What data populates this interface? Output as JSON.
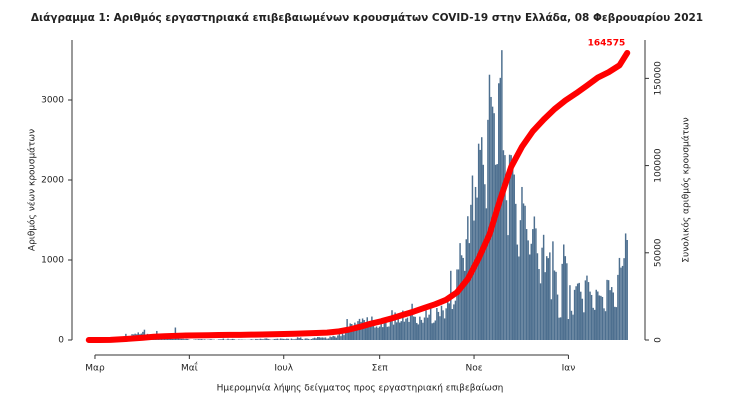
{
  "chart_data": {
    "type": "bar",
    "title": "Διάγραμμα 1: Αριθμός εργαστηριακά επιβεβαιωμένων κρουσμάτων COVID-19 στην Ελλάδα, 08 Φεβρουαρίου 2021",
    "xlabel": "Ημερομηνία λήψης δείγματος προς εργαστηριακή επιβεβαίωση",
    "ylabel": "Αριθμός νέων κρουσμάτων",
    "y2label": "Συνολικός αριθμός κρουσμάτων",
    "ylim": [
      0,
      3750
    ],
    "yticks": [
      0,
      1000,
      2000,
      3000
    ],
    "y2lim": [
      0,
      172000
    ],
    "y2ticks": [
      0,
      50000,
      100000,
      150000
    ],
    "categories": [
      null,
      null,
      null,
      null,
      "Μαρ",
      null,
      null,
      null,
      null,
      null,
      null,
      null,
      null,
      null,
      null,
      null,
      null,
      null,
      null,
      null,
      null,
      null,
      null,
      null,
      null,
      null,
      null,
      null,
      null,
      null,
      null,
      null,
      null,
      null,
      null,
      null,
      null,
      null,
      null,
      null,
      null,
      null,
      null,
      null,
      null,
      null,
      null,
      null,
      null,
      null,
      null,
      null,
      null,
      null,
      null,
      null,
      null,
      null,
      null,
      null,
      null,
      null,
      null,
      null,
      null,
      "Μαΐ",
      null,
      null,
      null,
      null,
      null,
      null,
      null,
      null,
      null,
      null,
      null,
      null,
      null,
      null,
      null,
      null,
      null,
      null,
      null,
      null,
      null,
      null,
      null,
      null,
      null,
      null,
      null,
      null,
      null,
      null,
      null,
      null,
      null,
      null,
      null,
      null,
      null,
      null,
      null,
      null,
      null,
      null,
      null,
      null,
      null,
      null,
      null,
      null,
      null,
      null,
      null,
      null,
      null,
      null,
      null,
      null,
      null,
      null,
      null,
      null,
      "Ιουλ",
      null,
      null,
      null,
      null,
      null,
      null,
      null,
      null,
      null,
      null,
      null,
      null,
      null,
      null,
      null,
      null,
      null,
      null,
      null,
      null,
      null,
      null,
      null,
      null,
      null,
      null,
      null,
      null,
      null,
      null,
      null,
      null,
      null,
      null,
      null,
      null,
      null,
      null,
      null,
      null,
      null,
      null,
      null,
      null,
      null,
      null,
      null,
      null,
      null,
      null,
      null,
      null,
      null,
      null,
      null,
      null,
      null,
      null,
      null,
      null,
      null,
      "Σεπ",
      null,
      null,
      null,
      null,
      null,
      null,
      null,
      null,
      null,
      null,
      null,
      null,
      null,
      null,
      null,
      null,
      null,
      null,
      null,
      null,
      null,
      null,
      null,
      null,
      null,
      null,
      null,
      null,
      null,
      null,
      null,
      null,
      null,
      null,
      null,
      null,
      null,
      null,
      null,
      null,
      null,
      null,
      null,
      null,
      null,
      null,
      null,
      null,
      null,
      null,
      null,
      null,
      null,
      null,
      null,
      null,
      null,
      null,
      null,
      null,
      "Νοε",
      null,
      null,
      null,
      null,
      null,
      null,
      null,
      null,
      null,
      null,
      null,
      null,
      null,
      null,
      null,
      null,
      null,
      null,
      null,
      null,
      null,
      null,
      null,
      null,
      null,
      null,
      null,
      null,
      null,
      null,
      null,
      null,
      null,
      null,
      null,
      null,
      null,
      null,
      null,
      null,
      null,
      null,
      null,
      null,
      null,
      null,
      null,
      null,
      null,
      null,
      null,
      null,
      null,
      null,
      null,
      null,
      null,
      null,
      null,
      null,
      "Ιαν",
      null,
      null,
      null,
      null,
      null,
      null,
      null,
      null,
      null,
      null,
      null,
      null,
      null,
      null,
      null,
      null,
      null,
      null,
      null,
      null,
      null,
      null,
      null,
      null,
      null,
      null,
      null,
      null,
      null,
      null,
      null,
      null,
      null,
      null,
      null,
      null,
      null,
      null
    ],
    "series": [
      {
        "type": "bar",
        "color": "#4d6f8f",
        "values": [
          1,
          2,
          0,
          0,
          3,
          0,
          0,
          2,
          21,
          0,
          14,
          22,
          9,
          0,
          5,
          9,
          25,
          10,
          17,
          20,
          33,
          38,
          31,
          46,
          77,
          31,
          41,
          52,
          73,
          70,
          79,
          71,
          95,
          72,
          80,
          102,
          129,
          62,
          77,
          56,
          70,
          60,
          41,
          57,
          113,
          69,
          40,
          30,
          77,
          40,
          25,
          45,
          12,
          21,
          15,
          16,
          156,
          26,
          22,
          16,
          15,
          15,
          10,
          14,
          13,
          3,
          1,
          0,
          5,
          7,
          6,
          10,
          9,
          11,
          5,
          8,
          2,
          5,
          6,
          11,
          4,
          5,
          0,
          2,
          7,
          8,
          8,
          18,
          4,
          5,
          16,
          6,
          9,
          14,
          9,
          3,
          2,
          7,
          4,
          6,
          3,
          4,
          2,
          3,
          3,
          10,
          6,
          3,
          13,
          10,
          8,
          16,
          12,
          9,
          19,
          20,
          13,
          8,
          3,
          5,
          12,
          14,
          17,
          6,
          19,
          16,
          14,
          10,
          17,
          15,
          3,
          18,
          10,
          9,
          15,
          34,
          24,
          32,
          12,
          5,
          19,
          20,
          14,
          7,
          13,
          22,
          29,
          21,
          37,
          35,
          30,
          32,
          29,
          32,
          17,
          20,
          43,
          36,
          52,
          46,
          30,
          57,
          92,
          48,
          80,
          61,
          120,
          262,
          120,
          207,
          200,
          158,
          217,
          195,
          236,
          264,
          226,
          269,
          250,
          163,
          284,
          174,
          203,
          293,
          182,
          155,
          169,
          152,
          168,
          221,
          161,
          215,
          259,
          165,
          169,
          284,
          372,
          192,
          344,
          221,
          277,
          218,
          236,
          368,
          229,
          266,
          280,
          226,
          342,
          453,
          294,
          290,
          213,
          195,
          292,
          251,
          216,
          281,
          369,
          279,
          317,
          395,
          209,
          217,
          244,
          400,
          351,
          297,
          428,
          371,
          270,
          396,
          508,
          458,
          865,
          387,
          445,
          492,
          882,
          882,
          1211,
          1059,
          1026,
          865,
          1259,
          1547,
          1211,
          1690,
          2056,
          1493,
          1913,
          1780,
          2454,
          2376,
          2535,
          2190,
          1947,
          1646,
          2752,
          3316,
          3038,
          2917,
          2835,
          2190,
          2199,
          3209,
          3277,
          3623,
          2372,
          2311,
          1747,
          1311,
          2316,
          2311,
          2179,
          2068,
          1702,
          1193,
          1044,
          1498,
          1913,
          1707,
          1678,
          1387,
          1245,
          1069,
          1203,
          1386,
          1544,
          1395,
          1084,
          887,
          708,
          1154,
          1315,
          848,
          1048,
          1023,
          1095,
          509,
          1233,
          869,
          852,
          568,
          279,
          283,
          952,
          1194,
          1048,
          959,
          262,
          685,
          365,
          317,
          627,
          672,
          705,
          714,
          604,
          516,
          346,
          745,
          805,
          724,
          605,
          563,
          402,
          377,
          628,
          606,
          557,
          552,
          538,
          396,
          360,
          752,
          748,
          623,
          662,
          594,
          415,
          411,
          814,
          1026,
          905,
          926,
          1023,
          1332,
          1250
        ]
      },
      {
        "type": "line",
        "axis": "y2",
        "color": "#ff0000",
        "x": [
          0,
          7,
          14,
          21,
          28,
          35,
          42,
          49,
          56,
          63,
          70,
          77,
          84,
          91,
          98,
          105,
          112,
          119,
          126,
          133,
          140,
          147,
          154,
          161,
          168,
          175,
          182,
          189,
          196,
          203,
          210,
          217,
          224,
          231,
          238,
          245,
          252,
          259,
          266,
          273,
          280,
          287,
          294,
          301,
          308,
          315,
          322,
          329,
          336,
          343,
          348
        ],
        "values": [
          1,
          9,
          99,
          418,
          821,
          1314,
          1884,
          2170,
          2401,
          2591,
          2678,
          2744,
          2850,
          2903,
          2952,
          3049,
          3148,
          3302,
          3432,
          3562,
          3826,
          3983,
          4227,
          4855,
          5942,
          7472,
          9280,
          10757,
          12452,
          14400,
          16286,
          18475,
          20541,
          23063,
          27334,
          35005,
          46892,
          60570,
          80881,
          99306,
          110816,
          119721,
          126372,
          132383,
          137326,
          141453,
          145902,
          150479,
          153536,
          157486,
          164575
        ]
      }
    ]
  }
}
